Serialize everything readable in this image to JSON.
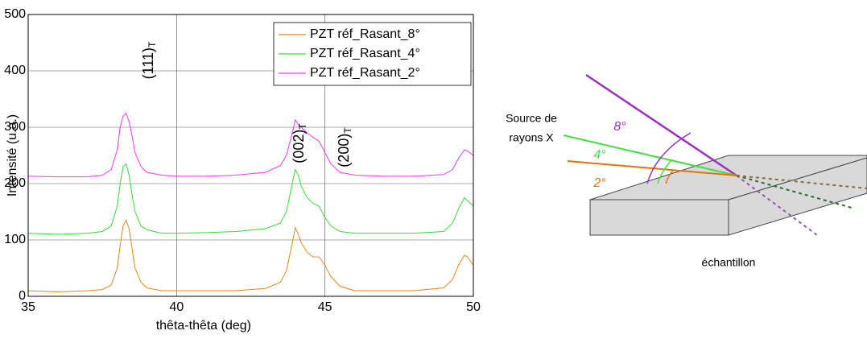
{
  "chart_data": {
    "type": "line",
    "xlabel": "thêta-thêta (deg)",
    "ylabel": "Intensité (u.a.)",
    "x": [
      35,
      36,
      37,
      37.5,
      37.8,
      38.0,
      38.1,
      38.2,
      38.3,
      38.4,
      38.5,
      38.6,
      38.8,
      39.0,
      39.5,
      40,
      41,
      42,
      43,
      43.5,
      43.7,
      43.9,
      44.0,
      44.1,
      44.2,
      44.4,
      44.6,
      44.8,
      45.0,
      45.2,
      45.5,
      46,
      47,
      48,
      49,
      49.3,
      49.5,
      49.7,
      49.8,
      50
    ],
    "series": [
      {
        "name": "PZT réf_Rasant_8°",
        "color": "#e8861a",
        "values": [
          10,
          8,
          10,
          12,
          20,
          50,
          90,
          125,
          135,
          120,
          85,
          50,
          25,
          15,
          10,
          10,
          10,
          10,
          14,
          25,
          45,
          95,
          122,
          110,
          95,
          78,
          70,
          70,
          55,
          35,
          18,
          10,
          10,
          10,
          15,
          30,
          55,
          73,
          70,
          55
        ]
      },
      {
        "name": "PZT réf_Rasant_4°",
        "color": "#33dd33",
        "values": [
          112,
          110,
          112,
          115,
          125,
          160,
          200,
          230,
          235,
          215,
          180,
          150,
          125,
          118,
          112,
          112,
          113,
          115,
          120,
          130,
          150,
          200,
          225,
          215,
          195,
          175,
          165,
          160,
          140,
          125,
          115,
          112,
          112,
          112,
          115,
          130,
          155,
          175,
          170,
          160
        ]
      },
      {
        "name": "PZT réf_Rasant_2°",
        "color": "#ff33ff",
        "values": [
          213,
          212,
          212,
          215,
          225,
          260,
          300,
          320,
          325,
          310,
          285,
          255,
          230,
          220,
          215,
          213,
          213,
          215,
          220,
          232,
          250,
          290,
          313,
          305,
          300,
          290,
          282,
          275,
          255,
          235,
          220,
          215,
          213,
          213,
          216,
          225,
          245,
          260,
          258,
          250
        ]
      }
    ],
    "xlim": [
      35,
      50
    ],
    "xticks": [
      35,
      40,
      45,
      50
    ],
    "ylim": [
      0,
      500
    ],
    "yticks": [
      0,
      100,
      200,
      300,
      400,
      500
    ],
    "grid": true,
    "legend": "upper right",
    "annotations": [
      {
        "text": "(111)",
        "subscript": "T"
      },
      {
        "text": "(002)",
        "subscript": "T"
      },
      {
        "text": "(200)",
        "subscript": "T"
      }
    ]
  },
  "diagram": {
    "source_label": [
      "Source de",
      "rayons X"
    ],
    "angles": [
      "8°",
      "4°",
      "2°"
    ],
    "sample_label": "échantillon"
  }
}
